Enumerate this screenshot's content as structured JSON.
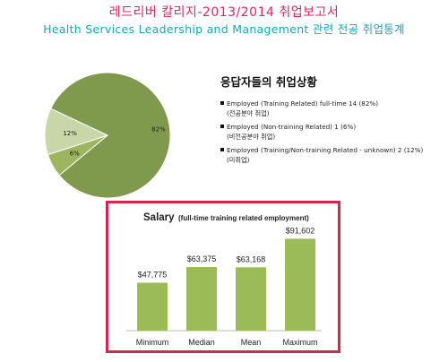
{
  "header": {
    "title_kr": "레드리버 칼리지-2013/2014 취업보고서",
    "subtitle": "Health Services Leadership and Management 관련 전공 취업통계"
  },
  "legend": {
    "title": "응답자들의 취업상황",
    "entries": [
      {
        "text": "Employed (Training Related) full-time 14 (82%)",
        "sub": "(전공분야 취업)",
        "color": "#7f9a4c"
      },
      {
        "text": "Employed (Non-training Related) 1 (6%)",
        "sub": "(비전공분야 취업)",
        "color": "#9db65e"
      },
      {
        "text": "Employed (Training/Non-training Related - unknown) 2 (12%)",
        "sub": "(미취업)",
        "color": "#c9d6a8"
      }
    ]
  },
  "salary": {
    "title_main": "Salary",
    "title_sub": "(full-time training related employment)"
  },
  "chart_data": [
    {
      "type": "pie",
      "categories": [
        "Employed (Training Related) full-time",
        "Employed (Non-training Related)",
        "Employed (Training/Non-training Related - unknown)"
      ],
      "values": [
        82,
        6,
        12
      ],
      "labels": [
        "82%",
        "6%",
        "12%"
      ],
      "colors": [
        "#7f9a4c",
        "#9db65e",
        "#c9d6a8"
      ]
    },
    {
      "type": "bar",
      "title": "Salary (full-time training related employment)",
      "categories": [
        "Minimum",
        "Median",
        "Mean",
        "Maximum"
      ],
      "values": [
        47775,
        63375,
        63168,
        91602
      ],
      "labels": [
        "$47,775",
        "$63,375",
        "$63,168",
        "$91,602"
      ],
      "ylim": [
        0,
        100000
      ],
      "color": "#9bbb59"
    }
  ]
}
